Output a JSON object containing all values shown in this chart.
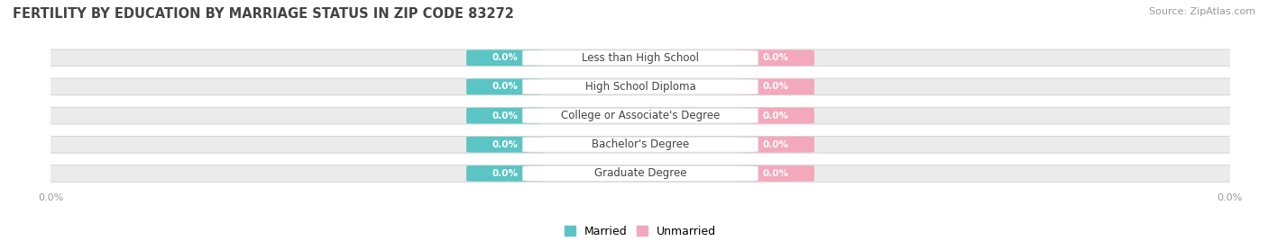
{
  "title": "FERTILITY BY EDUCATION BY MARRIAGE STATUS IN ZIP CODE 83272",
  "source": "Source: ZipAtlas.com",
  "categories": [
    "Less than High School",
    "High School Diploma",
    "College or Associate's Degree",
    "Bachelor's Degree",
    "Graduate Degree"
  ],
  "married_values": [
    0.0,
    0.0,
    0.0,
    0.0,
    0.0
  ],
  "unmarried_values": [
    0.0,
    0.0,
    0.0,
    0.0,
    0.0
  ],
  "married_color": "#5BC4C4",
  "unmarried_color": "#F4A8BC",
  "bar_bg_color": "#EBEBEB",
  "bar_border_color": "#D0D0D0",
  "category_label_color": "#444444",
  "title_color": "#444444",
  "source_color": "#999999",
  "axis_label_color": "#999999",
  "background_color": "#FFFFFF",
  "bar_label_fontsize": 7.5,
  "category_fontsize": 8.5,
  "legend_fontsize": 9,
  "axis_tick_fontsize": 8,
  "title_fontsize": 10.5
}
